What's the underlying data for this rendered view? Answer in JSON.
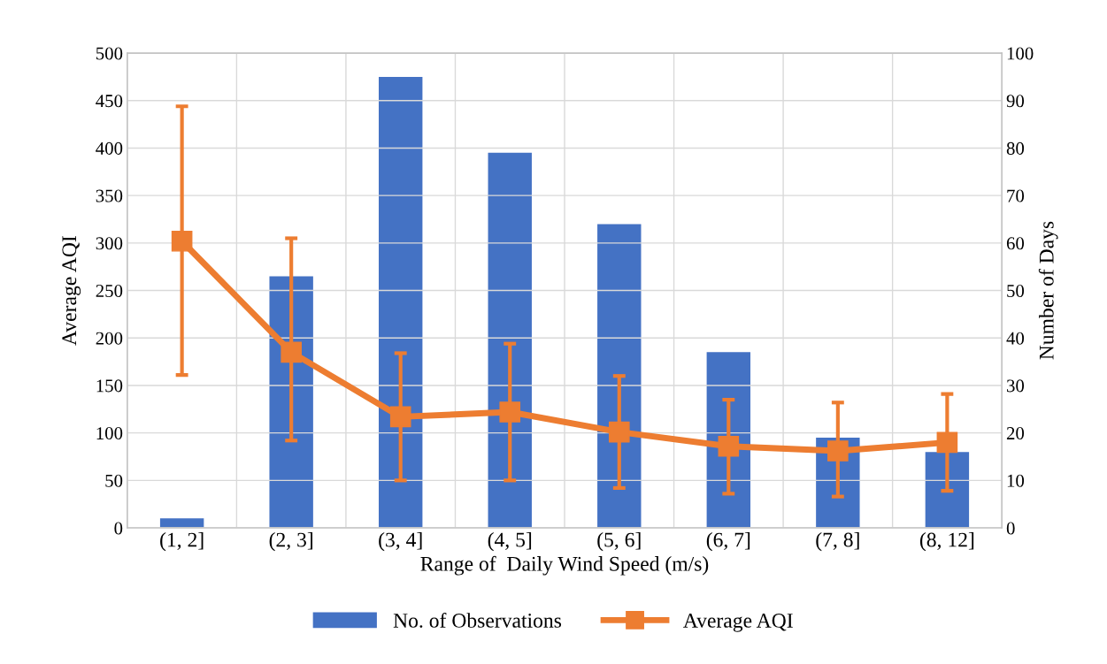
{
  "chart_data": {
    "type": "bar",
    "xlabel": "Range of  Daily Wind Speed (m/s)",
    "ylabel": "Average AQI",
    "y2label": "Number of Days",
    "categories": [
      "(1, 2]",
      "(2, 3]",
      "(3, 4]",
      "(4, 5]",
      "(5, 6]",
      "(6, 7]",
      "(7, 8]",
      "(8, 12]"
    ],
    "series": [
      {
        "name": "No. of Observations",
        "axis": "y2",
        "color": "#4472c4",
        "values": [
          2,
          53,
          95,
          79,
          64,
          37,
          19,
          16
        ]
      },
      {
        "name": "Average AQI",
        "type": "line",
        "axis": "y",
        "color": "#ed7d31",
        "marker": "square",
        "line_style": "solid",
        "values": [
          302,
          185,
          117,
          122,
          101,
          86,
          81,
          90
        ],
        "errors": [
          [
            161,
            444
          ],
          [
            92,
            305
          ],
          [
            50,
            184
          ],
          [
            50,
            194
          ],
          [
            42,
            160
          ],
          [
            36,
            135
          ],
          [
            33,
            132
          ],
          [
            39,
            141
          ]
        ]
      }
    ],
    "ylim": [
      0,
      500
    ],
    "yticks": [
      0,
      50,
      100,
      150,
      200,
      250,
      300,
      350,
      400,
      450,
      500
    ],
    "y2lim": [
      0,
      100
    ],
    "y2ticks": [
      0,
      10,
      20,
      30,
      40,
      50,
      60,
      70,
      80,
      90,
      100
    ],
    "grid": true,
    "legend": "bottom"
  }
}
